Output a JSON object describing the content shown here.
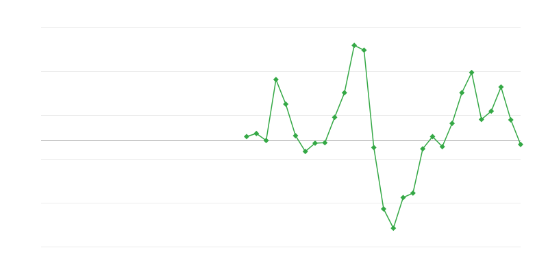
{
  "chart_data": {
    "type": "line",
    "title": "",
    "xlabel": "",
    "ylabel": "",
    "x_count": 50,
    "x_start_index": 21,
    "values": [
      0.09,
      0.16,
      0,
      1.39,
      0.83,
      0.11,
      -0.25,
      -0.06,
      -0.05,
      0.53,
      1.09,
      2.17,
      2.06,
      -0.16,
      -1.56,
      -2.0,
      -1.3,
      -1.2,
      -0.19,
      0.09,
      -0.14,
      0.39,
      1.09,
      1.55,
      0.48,
      0.67,
      1.22,
      0.47,
      -0.09
    ],
    "ylim": [
      -2.42,
      2.58
    ],
    "gridlines": [
      2.58,
      1.58,
      0.58,
      -0.42,
      -1.42,
      -2.42
    ],
    "baseline": 0,
    "grid": true,
    "legend": "none",
    "marker": "diamond",
    "colors": {
      "series": "#34a845",
      "grid": "#ebebeb",
      "baseline": "#aaaaaa"
    }
  }
}
